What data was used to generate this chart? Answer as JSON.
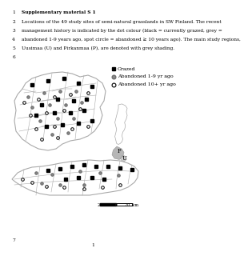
{
  "title_lines": [
    {
      "num": "1",
      "text": "Supplementary material S 1",
      "bold": true
    },
    {
      "num": "2",
      "text": "Locations of the 49 study sites of semi-natural grasslands in SW Finland. The recent"
    },
    {
      "num": "3",
      "text": "management history is indicated by the dot colour (black = currently grazed, grey ="
    },
    {
      "num": "4",
      "text": "abandoned 1-9 years ago, spot circle = abandoned ≥ 10 years ago). The main study regions,"
    },
    {
      "num": "5",
      "text": "Uusimaa (U) and Pirkanmaa (P), are denoted with grey shading."
    },
    {
      "num": "6",
      "text": ""
    }
  ],
  "legend_labels": [
    "Grazed",
    "Abandoned 1-9 yr ago",
    "Abandoned 10+ yr ago"
  ],
  "footer_num": "7",
  "page_num": "1",
  "background": "#ffffff",
  "text_color": "#000000",
  "text_fontsize": 4.2,
  "num_fontsize": 4.2
}
